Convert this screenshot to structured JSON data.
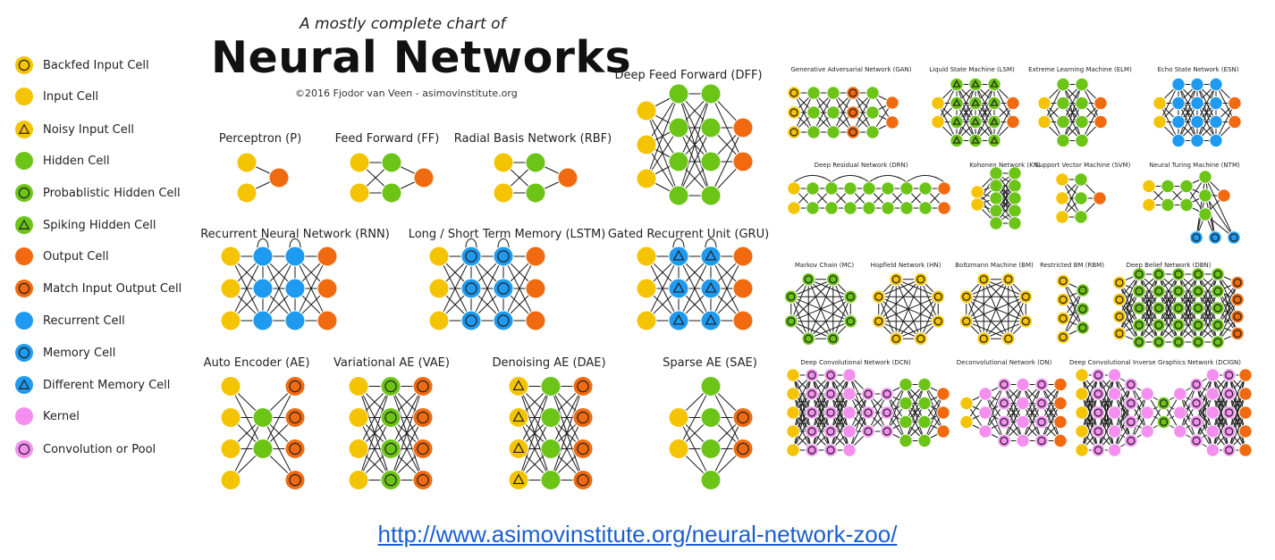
{
  "header": {
    "subtitle": "A mostly complete chart of",
    "title": "Neural Networks",
    "copyright": "©2016 Fjodor van Veen - asimovinstitute.org"
  },
  "legend": [
    {
      "label": "Backfed Input Cell",
      "color": "#f5c400",
      "mark": "circle"
    },
    {
      "label": "Input Cell",
      "color": "#f5c400",
      "mark": "none"
    },
    {
      "label": "Noisy Input Cell",
      "color": "#f5c400",
      "mark": "triangle"
    },
    {
      "label": "Hidden Cell",
      "color": "#6cc417",
      "mark": "none"
    },
    {
      "label": "Probablistic Hidden Cell",
      "color": "#6cc417",
      "mark": "circle"
    },
    {
      "label": "Spiking Hidden Cell",
      "color": "#6cc417",
      "mark": "triangle"
    },
    {
      "label": "Output Cell",
      "color": "#f26a0f",
      "mark": "none"
    },
    {
      "label": "Match Input Output Cell",
      "color": "#f26a0f",
      "mark": "circle"
    },
    {
      "label": "Recurrent Cell",
      "color": "#1e9af0",
      "mark": "none"
    },
    {
      "label": "Memory Cell",
      "color": "#1e9af0",
      "mark": "circle"
    },
    {
      "label": "Different Memory Cell",
      "color": "#1e9af0",
      "mark": "triangle"
    },
    {
      "label": "Kernel",
      "color": "#f48ff0",
      "mark": "none"
    },
    {
      "label": "Convolution or Pool",
      "color": "#f48ff0",
      "mark": "circle"
    }
  ],
  "networks": {
    "p": "Perceptron (P)",
    "ff": "Feed Forward (FF)",
    "rbf": "Radial Basis Network (RBF)",
    "dff": "Deep Feed Forward (DFF)",
    "rnn": "Recurrent Neural Network (RNN)",
    "lstm": "Long / Short Term Memory (LSTM)",
    "gru": "Gated Recurrent Unit (GRU)",
    "ae": "Auto Encoder (AE)",
    "vae": "Variational AE (VAE)",
    "dae": "Denoising AE (DAE)",
    "sae": "Sparse AE (SAE)",
    "gan": "Generative Adversarial Network (GAN)",
    "lsm": "Liquid State Machine (LSM)",
    "elm": "Extreme Learning Machine (ELM)",
    "esn": "Echo State Network (ESN)",
    "drn": "Deep Residual Network (DRN)",
    "kn": "Kohonen Network (KN)",
    "svm": "Support Vector Machine (SVM)",
    "ntm": "Neural Turing Machine (NTM)",
    "mc": "Markov Chain (MC)",
    "hn": "Hopfield Network (HN)",
    "bm": "Boltzmann Machine (BM)",
    "rbm": "Restricted BM (RBM)",
    "dbn": "Deep Belief Network (DBN)",
    "dcn": "Deep Convolutional Network (DCN)",
    "dn": "Deconvolutional Network (DN)",
    "dcign": "Deep Convolutional Inverse Graphics Network (DCIGN)"
  },
  "colors": {
    "input": "#f5c400",
    "hidden": "#6cc417",
    "output": "#f26a0f",
    "recurrent": "#1e9af0",
    "kernel": "#f48ff0"
  },
  "footer": {
    "url": "http://www.asimovinstitute.org/neural-network-zoo/"
  }
}
